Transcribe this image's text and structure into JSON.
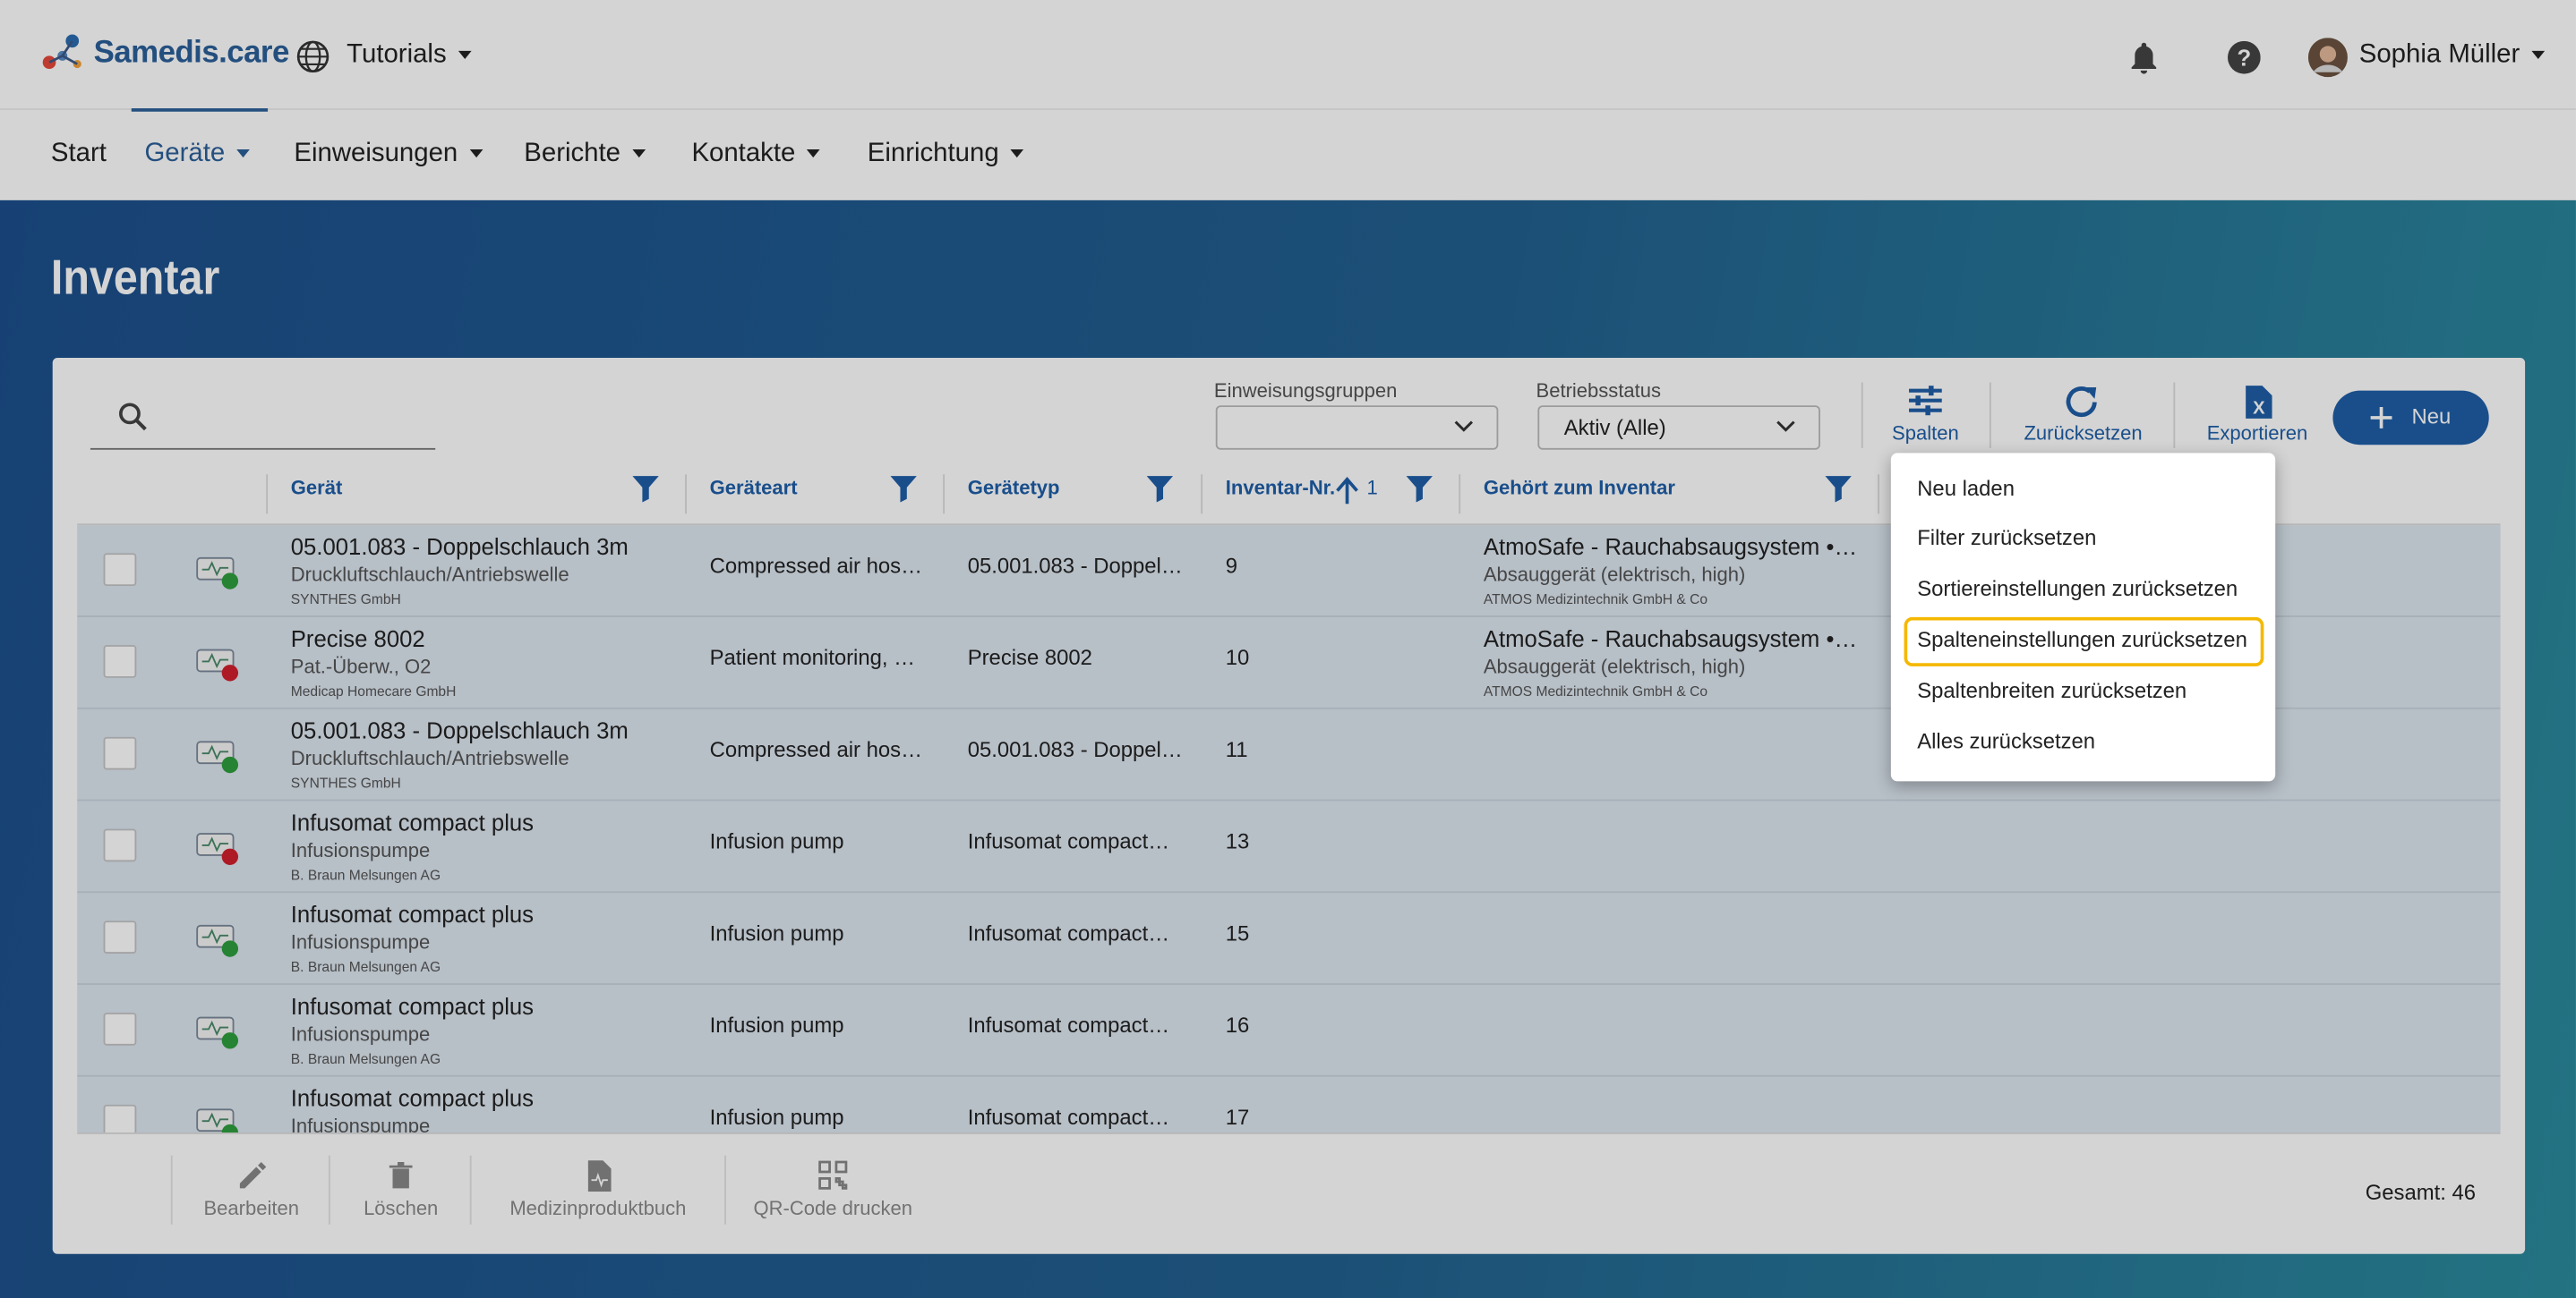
{
  "header": {
    "brand": "Samedis.care",
    "tenant": "Tutorials",
    "user": "Sophia Müller"
  },
  "nav": [
    "Start",
    "Geräte",
    "Einweisungen",
    "Berichte",
    "Kontakte",
    "Einrichtung"
  ],
  "nav_active": 1,
  "page_title": "Inventar",
  "filters": [
    {
      "label": "Einweisungsgruppen"
    },
    {
      "label": "Betriebsstatus",
      "value": "Aktiv (Alle)"
    }
  ],
  "toolbar": [
    "Spalten",
    "Zurücksetzen",
    "Exportieren"
  ],
  "new_button": "Neu",
  "columns": [
    "Gerät",
    "Geräteart",
    "Gerätetyp",
    "Inventar-Nr.",
    "Gehört zum Inventar"
  ],
  "sort_order": 1,
  "rows": [
    {
      "name": "05.001.083 - Doppelschlauch 3m",
      "category": "Druckluftschlauch/Antriebswelle",
      "manufacturer": "SYNTHES GmbH",
      "type_name": "Compressed air hos…",
      "device_type": "05.001.083 - Doppel…",
      "inventory_no": 9,
      "belongs": {
        "name": "AtmoSafe - Rauchabsaugsystem •…",
        "category": "Absauggerät (elektrisch, high)",
        "manufacturer": "ATMOS Medizintechnik GmbH & Co"
      },
      "status_color": "#2e9e3e"
    },
    {
      "name": "Precise 8002",
      "category": "Pat.-Überw., O2",
      "manufacturer": "Medicap Homecare GmbH",
      "type_name": "Patient monitoring, …",
      "device_type": "Precise 8002",
      "inventory_no": 10,
      "belongs": {
        "name": "AtmoSafe - Rauchabsaugsystem •…",
        "category": "Absauggerät (elektrisch, high)",
        "manufacturer": "ATMOS Medizintechnik GmbH & Co"
      },
      "status_color": "#d0202e"
    },
    {
      "name": "05.001.083 - Doppelschlauch 3m",
      "category": "Druckluftschlauch/Antriebswelle",
      "manufacturer": "SYNTHES GmbH",
      "type_name": "Compressed air hos…",
      "device_type": "05.001.083 - Doppel…",
      "inventory_no": 11,
      "status_color": "#2e9e3e"
    },
    {
      "name": "Infusomat compact plus",
      "category": "Infusionspumpe",
      "manufacturer": "B. Braun Melsungen AG",
      "type_name": "Infusion pump",
      "device_type": "Infusomat compact…",
      "inventory_no": 13,
      "status_color": "#d0202e"
    },
    {
      "name": "Infusomat compact plus",
      "category": "Infusionspumpe",
      "manufacturer": "B. Braun Melsungen AG",
      "type_name": "Infusion pump",
      "device_type": "Infusomat compact…",
      "inventory_no": 15,
      "status_color": "#2e9e3e"
    },
    {
      "name": "Infusomat compact plus",
      "category": "Infusionspumpe",
      "manufacturer": "B. Braun Melsungen AG",
      "type_name": "Infusion pump",
      "device_type": "Infusomat compact…",
      "inventory_no": 16,
      "status_color": "#2e9e3e"
    },
    {
      "name": "Infusomat compact plus",
      "category": "Infusionspumpe",
      "type_name": "Infusion pump",
      "device_type": "Infusomat compact…",
      "inventory_no": 17,
      "status_color": "#2e9e3e"
    }
  ],
  "menu": [
    "Neu laden",
    "Filter zurücksetzen",
    "Sortiereinstellungen zurücksetzen",
    "Spalteneinstellungen zurücksetzen",
    "Spaltenbreiten zurücksetzen",
    "Alles zurücksetzen"
  ],
  "menu_highlight": 3,
  "footer_actions": [
    "Bearbeiten",
    "Löschen",
    "Medizinproduktbuch",
    "QR-Code drucken"
  ],
  "total": "Gesamt: 46"
}
